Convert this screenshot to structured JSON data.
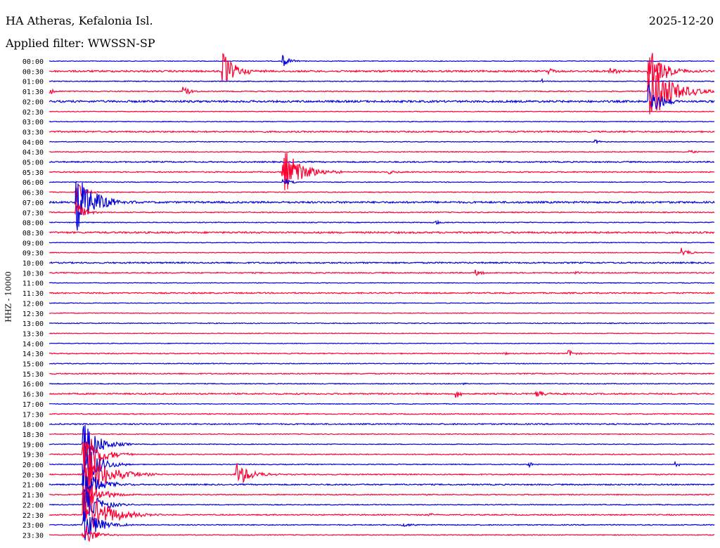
{
  "header": {
    "station": "HA Atheras, Kefalonia Isl.",
    "date": "2025-12-20",
    "filter": "Applied filter: WWSSN-SP"
  },
  "channel_label": "HHZ - 10000",
  "colors": {
    "blue": "#0000dd",
    "red": "#ff0033"
  },
  "chart_data": {
    "type": "line",
    "title": "HA Atheras, Kefalonia Isl.",
    "channel": "HHZ - 10000",
    "rows": [
      "00:00",
      "00:30",
      "01:00",
      "01:30",
      "02:00",
      "02:30",
      "03:00",
      "03:30",
      "04:00",
      "04:30",
      "05:00",
      "05:30",
      "06:00",
      "06:30",
      "07:00",
      "07:30",
      "08:00",
      "08:30",
      "09:00",
      "09:30",
      "10:00",
      "10:30",
      "11:00",
      "11:30",
      "12:00",
      "12:30",
      "13:00",
      "13:30",
      "14:00",
      "14:30",
      "15:00",
      "15:30",
      "16:00",
      "16:30",
      "17:00",
      "17:30",
      "18:00",
      "18:30",
      "19:00",
      "19:30",
      "20:00",
      "20:30",
      "21:00",
      "21:30",
      "22:00",
      "22:30",
      "23:00",
      "23:30"
    ],
    "row_colors": [
      "blue",
      "red",
      "blue",
      "red",
      "blue",
      "red",
      "blue",
      "red",
      "blue",
      "red",
      "blue",
      "red",
      "blue",
      "red",
      "blue",
      "red",
      "blue",
      "red",
      "blue",
      "red",
      "blue",
      "red",
      "blue",
      "red",
      "blue",
      "red",
      "blue",
      "red",
      "blue",
      "red",
      "blue",
      "red",
      "blue",
      "red",
      "blue",
      "red",
      "blue",
      "red",
      "blue",
      "red",
      "blue",
      "red",
      "blue",
      "red",
      "blue",
      "red",
      "blue",
      "red"
    ],
    "noise": [
      0.5,
      1.2,
      0.6,
      0.7,
      1.4,
      0.5,
      0.5,
      1.0,
      0.5,
      0.6,
      0.9,
      0.8,
      0.5,
      0.6,
      1.3,
      0.7,
      0.6,
      1.2,
      0.5,
      0.5,
      1.0,
      0.8,
      0.5,
      0.9,
      0.5,
      0.5,
      0.6,
      0.5,
      0.5,
      0.7,
      0.6,
      0.8,
      0.6,
      1.0,
      0.5,
      0.7,
      0.9,
      0.6,
      0.5,
      0.7,
      0.6,
      0.8,
      0.9,
      0.7,
      0.6,
      0.8,
      0.7,
      0.6
    ],
    "events": [
      {
        "row": 0,
        "t": 0.35,
        "amp": 10,
        "dur": 0.01
      },
      {
        "row": 1,
        "t": 0.26,
        "amp": 28,
        "dur": 0.018
      },
      {
        "row": 1,
        "t": 0.75,
        "amp": 5,
        "dur": 0.008
      },
      {
        "row": 1,
        "t": 0.84,
        "amp": 8,
        "dur": 0.01
      },
      {
        "row": 1,
        "t": 0.9,
        "amp": 38,
        "dur": 0.02
      },
      {
        "row": 2,
        "t": 0.74,
        "amp": 4,
        "dur": 0.006
      },
      {
        "row": 3,
        "t": 0.0,
        "amp": 5,
        "dur": 0.008
      },
      {
        "row": 3,
        "t": 0.2,
        "amp": 8,
        "dur": 0.01
      },
      {
        "row": 3,
        "t": 0.9,
        "amp": 50,
        "dur": 0.03
      },
      {
        "row": 4,
        "t": 0.9,
        "amp": 30,
        "dur": 0.015
      },
      {
        "row": 8,
        "t": 0.82,
        "amp": 4,
        "dur": 0.006
      },
      {
        "row": 9,
        "t": 0.96,
        "amp": 4,
        "dur": 0.01
      },
      {
        "row": 11,
        "t": 0.35,
        "amp": 40,
        "dur": 0.025
      },
      {
        "row": 11,
        "t": 0.51,
        "amp": 5,
        "dur": 0.008
      },
      {
        "row": 12,
        "t": 0.35,
        "amp": 8,
        "dur": 0.01
      },
      {
        "row": 13,
        "t": 0.04,
        "amp": 20,
        "dur": 0.01
      },
      {
        "row": 14,
        "t": 0.04,
        "amp": 45,
        "dur": 0.025
      },
      {
        "row": 15,
        "t": 0.04,
        "amp": 20,
        "dur": 0.01
      },
      {
        "row": 16,
        "t": 0.58,
        "amp": 4,
        "dur": 0.006
      },
      {
        "row": 19,
        "t": 0.95,
        "amp": 8,
        "dur": 0.01
      },
      {
        "row": 21,
        "t": 0.64,
        "amp": 5,
        "dur": 0.008
      },
      {
        "row": 21,
        "t": 0.79,
        "amp": 3,
        "dur": 0.008
      },
      {
        "row": 29,
        "t": 0.68,
        "amp": 3,
        "dur": 0.006
      },
      {
        "row": 29,
        "t": 0.78,
        "amp": 6,
        "dur": 0.008
      },
      {
        "row": 32,
        "t": 0.62,
        "amp": 3,
        "dur": 0.006
      },
      {
        "row": 33,
        "t": 0.61,
        "amp": 8,
        "dur": 0.008
      },
      {
        "row": 33,
        "t": 0.73,
        "amp": 4,
        "dur": 0.02
      },
      {
        "row": 40,
        "t": 0.72,
        "amp": 5,
        "dur": 0.006
      },
      {
        "row": 40,
        "t": 0.94,
        "amp": 5,
        "dur": 0.006
      },
      {
        "row": 38,
        "t": 0.05,
        "amp": 40,
        "dur": 0.02
      },
      {
        "row": 39,
        "t": 0.05,
        "amp": 45,
        "dur": 0.02
      },
      {
        "row": 40,
        "t": 0.05,
        "amp": 40,
        "dur": 0.02
      },
      {
        "row": 41,
        "t": 0.05,
        "amp": 45,
        "dur": 0.03
      },
      {
        "row": 41,
        "t": 0.28,
        "amp": 20,
        "dur": 0.02
      },
      {
        "row": 42,
        "t": 0.05,
        "amp": 30,
        "dur": 0.02
      },
      {
        "row": 43,
        "t": 0.05,
        "amp": 30,
        "dur": 0.02
      },
      {
        "row": 44,
        "t": 0.05,
        "amp": 30,
        "dur": 0.02
      },
      {
        "row": 45,
        "t": 0.05,
        "amp": 45,
        "dur": 0.03
      },
      {
        "row": 45,
        "t": 0.57,
        "amp": 3,
        "dur": 0.008
      },
      {
        "row": 46,
        "t": 0.05,
        "amp": 30,
        "dur": 0.02
      },
      {
        "row": 46,
        "t": 0.53,
        "amp": 5,
        "dur": 0.008
      },
      {
        "row": 47,
        "t": 0.05,
        "amp": 20,
        "dur": 0.015
      }
    ]
  }
}
